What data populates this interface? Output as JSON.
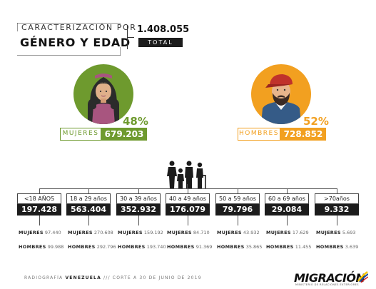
{
  "header": {
    "line1": "CARACTERIZACIÓN POR",
    "line2": "GÉNERO Y EDAD",
    "total_value": "1.408.055",
    "total_label": "TOTAL"
  },
  "colors": {
    "women": "#6e9a2e",
    "men": "#f2a020",
    "dark": "#1c1c1c"
  },
  "women": {
    "percent": "48%",
    "label": "MUJERES",
    "value": "679.203"
  },
  "men": {
    "percent": "52%",
    "label": "HOMBRES",
    "value": "728.852"
  },
  "chart_data": {
    "type": "table",
    "total": 1408055,
    "gender": [
      {
        "name": "MUJERES",
        "percent": 48,
        "value": 679203
      },
      {
        "name": "HOMBRES",
        "percent": 52,
        "value": 728852
      }
    ],
    "categories": [
      "<18 AÑOS",
      "18 a 29 años",
      "30 a 39 años",
      "40 a 49 años",
      "50 a 59 años",
      "60 a 69 años",
      ">70años"
    ],
    "totals_display": [
      "197.428",
      "563.404",
      "352.932",
      "176.079",
      "79.796",
      "29.084",
      "9.332"
    ],
    "series": [
      {
        "name": "MUJERES",
        "display": [
          "97.440",
          "270.608",
          "159.192",
          "84.710",
          "43.932",
          "17.629",
          "5.693"
        ]
      },
      {
        "name": "HOMBRES",
        "display": [
          "99.988",
          "292.796",
          "193.740",
          "91.369",
          "35.865",
          "11.455",
          "3.639"
        ]
      }
    ]
  },
  "footer": {
    "part1": "RADIOGRAFÍA",
    "part2": "VENEZUELA",
    "part3": "/// CORTE A 30 DE JUNIO DE 2019",
    "logo": "MIGRACIÓN",
    "logo_sub": "MINISTERIO DE RELACIONES EXTERIORES"
  }
}
